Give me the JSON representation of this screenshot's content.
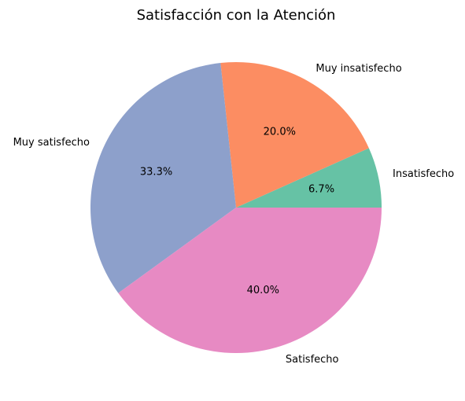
{
  "chart_data": {
    "type": "pie",
    "title": "Satisfacción con la Atención",
    "start_angle_deg": 0,
    "direction": "counterclockwise",
    "slices": [
      {
        "label": "Insatisfecho",
        "percent": 6.7,
        "pct_label": "6.7%",
        "color": "#66c2a5"
      },
      {
        "label": "Muy insatisfecho",
        "percent": 20.0,
        "pct_label": "20.0%",
        "color": "#fc8d62"
      },
      {
        "label": "Muy satisfecho",
        "percent": 33.3,
        "pct_label": "33.3%",
        "color": "#8da0cb"
      },
      {
        "label": "Satisfecho",
        "percent": 40.0,
        "pct_label": "40.0%",
        "color": "#e78ac3"
      }
    ]
  }
}
